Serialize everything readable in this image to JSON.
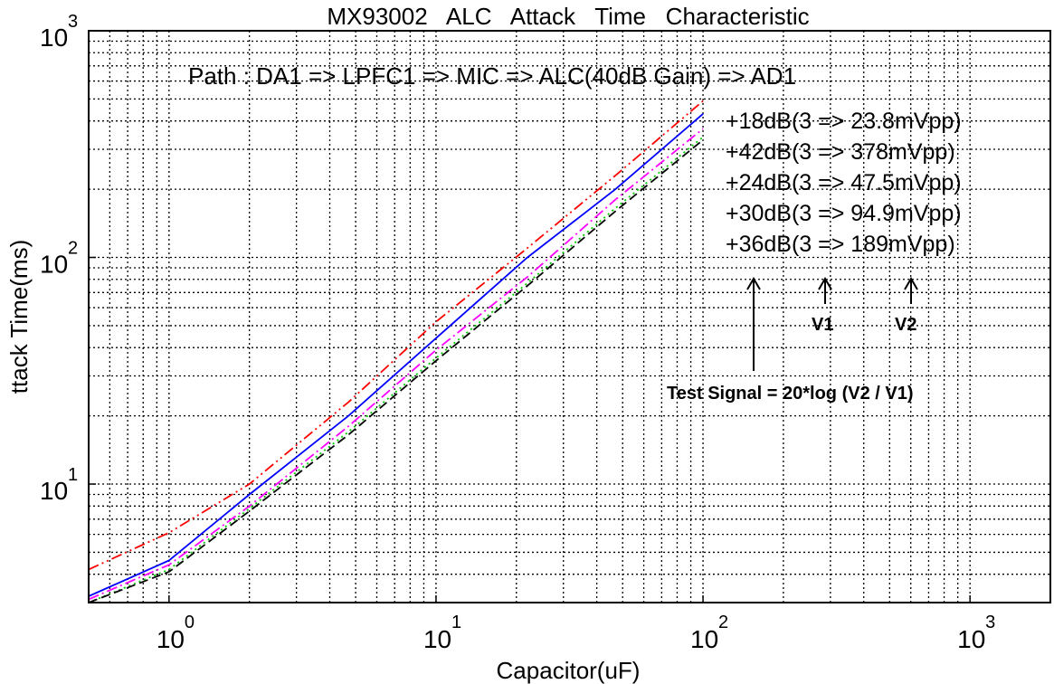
{
  "chart_data": {
    "type": "line",
    "title": "MX93002   ALC   Attack   Time   Characteristic",
    "xlabel": "Capacitor(uF)",
    "ylabel": "ttack Time(ms)",
    "xscale": "log",
    "yscale": "log",
    "xlim": [
      0.5,
      2000
    ],
    "ylim": [
      3,
      1000
    ],
    "grid": true,
    "x_ticks": [
      {
        "base": "10",
        "exp": "0",
        "value": 1
      },
      {
        "base": "10",
        "exp": "1",
        "value": 10
      },
      {
        "base": "10",
        "exp": "2",
        "value": 100
      },
      {
        "base": "10",
        "exp": "3",
        "value": 1000
      }
    ],
    "y_ticks": [
      {
        "base": "10",
        "exp": "1",
        "value": 10
      },
      {
        "base": "10",
        "exp": "2",
        "value": 100
      },
      {
        "base": "10",
        "exp": "3",
        "value": 1000
      }
    ],
    "series": [
      {
        "name": "+18dB(3 => 23.8mVpp)",
        "color": "#ff0000",
        "dash": "dashdotdot",
        "x": [
          0.5,
          1,
          2,
          4.7,
          10,
          22,
          47,
          100
        ],
        "y": [
          4.2,
          6.1,
          10,
          23,
          52,
          110,
          230,
          490
        ]
      },
      {
        "name": "+42dB(3 => 378mVpp)",
        "color": "#0000ff",
        "dash": "solid",
        "x": [
          0.5,
          1,
          2,
          4.7,
          10,
          22,
          47,
          100
        ],
        "y": [
          3.2,
          4.6,
          9,
          20,
          44,
          100,
          200,
          430
        ]
      },
      {
        "name": "+24dB(3 => 47.5mVpp)",
        "color": "#ff00ff",
        "dash": "dashdot",
        "x": [
          0.5,
          1,
          2,
          4.7,
          10,
          22,
          47,
          100
        ],
        "y": [
          3.1,
          4.4,
          8,
          18,
          39,
          82,
          180,
          370
        ]
      },
      {
        "name": "+30dB(3 => 94.9mVpp)",
        "color": "#00cc00",
        "dash": "dotted",
        "x": [
          0.5,
          1,
          2,
          4.7,
          10,
          22,
          47,
          100
        ],
        "y": [
          3.0,
          4.2,
          7.8,
          17,
          36,
          77,
          165,
          340
        ]
      },
      {
        "name": "+36dB(3 => 189mVpp)",
        "color": "#000000",
        "dash": "dashed",
        "x": [
          0.5,
          1,
          2,
          4.7,
          10,
          22,
          47,
          100
        ],
        "y": [
          3.0,
          4.1,
          7.6,
          16.5,
          35,
          75,
          160,
          330
        ]
      }
    ],
    "annotations": {
      "path": "Path : DA1 => LPFC1 => MIC => ALC(40dB Gain) => AD1",
      "v1": "V1",
      "v2": "V2",
      "formula": "Test Signal = 20*log (V2 / V1)"
    }
  }
}
